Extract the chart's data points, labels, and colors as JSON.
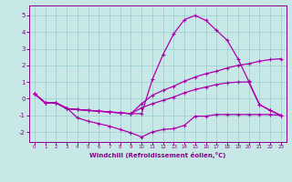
{
  "background_color": "#c8e8e8",
  "line_color": "#aa00aa",
  "grid_color": "#99cccc",
  "xlabel": "Windchill (Refroidissement éolien,°C)",
  "xlabel_color": "#880088",
  "tick_color": "#880088",
  "xlim": [
    -0.5,
    23.5
  ],
  "ylim": [
    -2.6,
    5.6
  ],
  "yticks": [
    -2,
    -1,
    0,
    1,
    2,
    3,
    4,
    5
  ],
  "xticks": [
    0,
    1,
    2,
    3,
    4,
    5,
    6,
    7,
    8,
    9,
    10,
    11,
    12,
    13,
    14,
    15,
    16,
    17,
    18,
    19,
    20,
    21,
    22,
    23
  ],
  "series": [
    {
      "x": [
        0,
        1,
        2,
        3,
        4,
        5,
        6,
        7,
        8,
        9,
        10,
        11,
        12,
        13,
        14,
        15,
        16,
        17,
        18,
        19,
        20,
        21,
        22,
        23
      ],
      "y": [
        0.3,
        -0.25,
        -0.25,
        -0.55,
        -1.15,
        -1.35,
        -1.5,
        -1.65,
        -1.85,
        -2.05,
        -2.3,
        -2.0,
        -1.85,
        -1.8,
        -1.6,
        -1.05,
        -1.05,
        -0.95,
        -0.95,
        -0.95,
        -0.95,
        -0.95,
        -0.95,
        -1.0
      ]
    },
    {
      "x": [
        0,
        1,
        2,
        3,
        4,
        5,
        6,
        7,
        8,
        9,
        10,
        11,
        12,
        13,
        14,
        15,
        16,
        17,
        18,
        19,
        20,
        21,
        22,
        23
      ],
      "y": [
        0.3,
        -0.25,
        -0.25,
        -0.6,
        -0.65,
        -0.7,
        -0.75,
        -0.8,
        -0.85,
        -0.9,
        -0.9,
        1.15,
        2.65,
        3.9,
        4.75,
        5.0,
        4.7,
        4.1,
        3.5,
        2.4,
        1.05,
        -0.35,
        -0.7,
        -1.0
      ]
    },
    {
      "x": [
        0,
        1,
        2,
        3,
        4,
        5,
        6,
        7,
        8,
        9,
        10,
        11,
        12,
        13,
        14,
        15,
        16,
        17,
        18,
        19,
        20,
        21,
        22,
        23
      ],
      "y": [
        0.3,
        -0.25,
        -0.25,
        -0.6,
        -0.65,
        -0.7,
        -0.75,
        -0.8,
        -0.85,
        -0.9,
        -0.3,
        0.2,
        0.5,
        0.75,
        1.05,
        1.3,
        1.5,
        1.65,
        1.85,
        2.0,
        2.1,
        2.25,
        2.35,
        2.4
      ]
    },
    {
      "x": [
        0,
        1,
        2,
        3,
        4,
        5,
        6,
        7,
        8,
        9,
        10,
        11,
        12,
        13,
        14,
        15,
        16,
        17,
        18,
        19,
        20,
        21,
        22,
        23
      ],
      "y": [
        0.3,
        -0.25,
        -0.25,
        -0.6,
        -0.65,
        -0.7,
        -0.75,
        -0.8,
        -0.85,
        -0.9,
        -0.55,
        -0.3,
        -0.1,
        0.1,
        0.35,
        0.55,
        0.7,
        0.85,
        0.95,
        1.0,
        1.0,
        -0.35,
        -0.7,
        -1.0
      ]
    }
  ]
}
